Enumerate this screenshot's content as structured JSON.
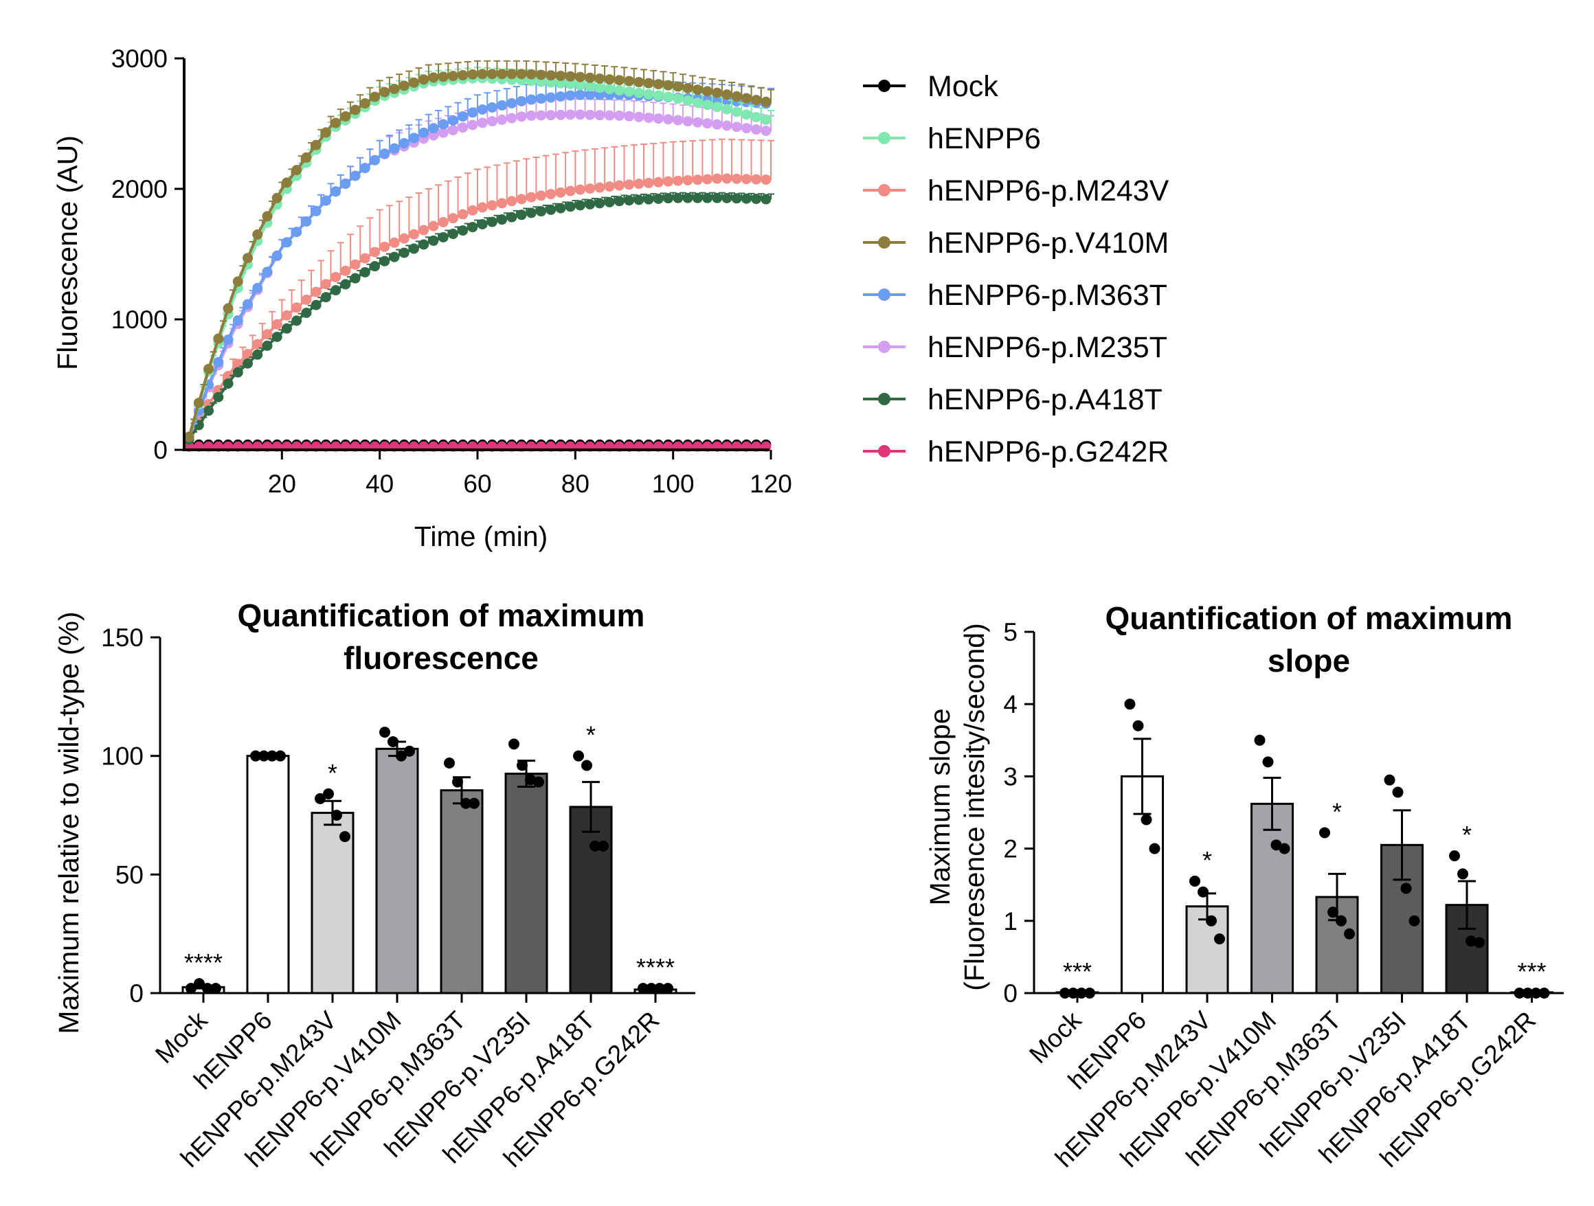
{
  "chart_data": [
    {
      "type": "line",
      "title": "",
      "xlabel": "Time (min)",
      "ylabel": "Fluorescence (AU)",
      "xlim": [
        0,
        120
      ],
      "ylim": [
        0,
        3000
      ],
      "xticks": [
        "20",
        "40",
        "60",
        "80",
        "100",
        "120"
      ],
      "yticks": [
        "0",
        "1000",
        "2000",
        "3000"
      ],
      "legend_position": "right",
      "series": [
        {
          "name": "Mock",
          "color": "#000000",
          "x": [
            1,
            10,
            20,
            30,
            40,
            50,
            60,
            70,
            80,
            90,
            100,
            110,
            120
          ],
          "y": [
            40,
            40,
            40,
            40,
            40,
            40,
            40,
            40,
            40,
            40,
            40,
            40,
            40
          ]
        },
        {
          "name": "hENPP6",
          "color": "#7ee8b0",
          "x": [
            1,
            5,
            10,
            15,
            20,
            30,
            40,
            50,
            60,
            70,
            80,
            90,
            100,
            110,
            120
          ],
          "y": [
            100,
            600,
            1150,
            1600,
            1950,
            2450,
            2700,
            2820,
            2850,
            2830,
            2800,
            2750,
            2700,
            2620,
            2520
          ],
          "err": 80
        },
        {
          "name": "hENPP6-p.M243V",
          "color": "#f08c84",
          "x": [
            1,
            5,
            10,
            20,
            30,
            40,
            50,
            60,
            70,
            80,
            90,
            100,
            110,
            120
          ],
          "y": [
            100,
            350,
            620,
            1000,
            1300,
            1540,
            1700,
            1850,
            1930,
            1990,
            2030,
            2060,
            2080,
            2070
          ],
          "err": 300
        },
        {
          "name": "hENPP6-p.V410M",
          "color": "#8c7d3c",
          "x": [
            1,
            5,
            10,
            15,
            20,
            30,
            40,
            50,
            60,
            70,
            80,
            90,
            100,
            110,
            120
          ],
          "y": [
            100,
            620,
            1200,
            1650,
            2000,
            2480,
            2730,
            2850,
            2880,
            2880,
            2860,
            2830,
            2790,
            2730,
            2660
          ],
          "err": 100
        },
        {
          "name": "hENPP6-p.M363T",
          "color": "#6a9cf2",
          "x": [
            1,
            5,
            10,
            20,
            30,
            40,
            50,
            60,
            70,
            80,
            90,
            100,
            110,
            120
          ],
          "y": [
            100,
            500,
            930,
            1550,
            1950,
            2250,
            2450,
            2600,
            2680,
            2720,
            2720,
            2700,
            2680,
            2650
          ],
          "err": 120
        },
        {
          "name": "hENPP6-p.M235T",
          "color": "#d49ef0",
          "x": [
            1,
            5,
            10,
            20,
            30,
            40,
            50,
            60,
            70,
            80,
            90,
            100,
            110,
            120
          ],
          "y": [
            100,
            480,
            900,
            1550,
            1950,
            2250,
            2400,
            2500,
            2560,
            2570,
            2560,
            2530,
            2490,
            2440
          ],
          "err": 120
        },
        {
          "name": "hENPP6-p.A418T",
          "color": "#2f6a45",
          "x": [
            1,
            5,
            10,
            20,
            30,
            40,
            50,
            60,
            70,
            80,
            90,
            100,
            110,
            120
          ],
          "y": [
            80,
            300,
            560,
            900,
            1200,
            1430,
            1590,
            1720,
            1810,
            1870,
            1910,
            1930,
            1930,
            1920
          ],
          "err": 40
        },
        {
          "name": "hENPP6-p.G242R",
          "color": "#e0357a",
          "x": [
            1,
            10,
            20,
            30,
            40,
            50,
            60,
            70,
            80,
            90,
            100,
            110,
            120
          ],
          "y": [
            25,
            25,
            25,
            25,
            25,
            25,
            25,
            25,
            25,
            25,
            25,
            25,
            25
          ]
        }
      ]
    },
    {
      "type": "bar",
      "title": "Quantification of maximum fluorescence",
      "xlabel": "",
      "ylabel": "Maximum relative to wild-type (%)",
      "ylim": [
        0,
        150
      ],
      "yticks": [
        "0",
        "50",
        "100",
        "150"
      ],
      "categories": [
        "Mock",
        "hENPP6",
        "hENPP6-p.M243V",
        "hENPP6-p.V410M",
        "hENPP6-p.M363T",
        "hENPP6-p.V235I",
        "hENPP6-p.A418T",
        "hENPP6-p.G242R"
      ],
      "values": [
        2.5,
        100,
        76,
        103,
        85.5,
        92.5,
        78.5,
        1.5
      ],
      "sem": [
        0.5,
        0,
        5,
        3,
        5.5,
        5.5,
        10.5,
        0.3
      ],
      "points": [
        [
          2,
          4,
          2,
          2
        ],
        [
          100,
          100,
          100,
          100
        ],
        [
          82,
          84,
          75,
          66
        ],
        [
          110,
          106,
          100,
          102
        ],
        [
          97,
          89,
          80,
          80
        ],
        [
          105,
          96,
          90,
          89
        ],
        [
          100,
          96,
          62,
          62
        ],
        [
          2,
          2,
          2,
          2
        ]
      ],
      "significance": [
        "****",
        "",
        "*",
        "",
        "",
        "",
        "*",
        "****"
      ],
      "bar_colors": [
        "#ffffff",
        "#ffffff",
        "#d3d3d3",
        "#a3a3a8",
        "#808080",
        "#5c5c5c",
        "#303030",
        "#ffffff"
      ]
    },
    {
      "type": "bar",
      "title": "Quantification of maximum slope",
      "xlabel": "",
      "ylabel": "Maximum slope",
      "ylabel2": "(Fluoresence intesity/second)",
      "ylim": [
        0,
        5
      ],
      "yticks": [
        "0",
        "1",
        "2",
        "3",
        "4",
        "5"
      ],
      "categories": [
        "Mock",
        "hENPP6",
        "hENPP6-p.M243V",
        "hENPP6-p.V410M",
        "hENPP6-p.M363T",
        "hENPP6-p.V235I",
        "hENPP6-p.A418T",
        "hENPP6-p.G242R"
      ],
      "values": [
        0.01,
        3.0,
        1.2,
        2.62,
        1.33,
        2.05,
        1.22,
        0.01
      ],
      "sem": [
        0,
        0.52,
        0.18,
        0.36,
        0.32,
        0.48,
        0.33,
        0
      ],
      "points": [
        [
          0,
          0,
          0,
          0
        ],
        [
          4.0,
          3.7,
          2.4,
          2.0
        ],
        [
          1.55,
          1.4,
          1.0,
          0.75
        ],
        [
          3.5,
          3.2,
          2.05,
          2.0
        ],
        [
          2.22,
          1.12,
          1.0,
          0.82
        ],
        [
          2.95,
          2.78,
          1.45,
          1.0
        ],
        [
          1.9,
          1.65,
          0.72,
          0.7
        ],
        [
          0,
          0,
          0,
          0
        ]
      ],
      "significance": [
        "***",
        "",
        "*",
        "",
        "*",
        "",
        "*",
        "***"
      ],
      "bar_colors": [
        "#ffffff",
        "#ffffff",
        "#d3d3d3",
        "#a3a3a8",
        "#808080",
        "#5c5c5c",
        "#303030",
        "#ffffff"
      ]
    }
  ]
}
